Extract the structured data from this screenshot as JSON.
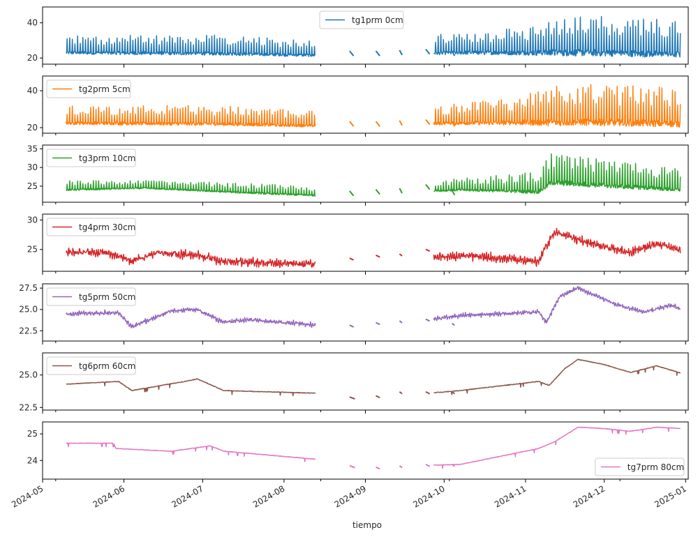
{
  "chart_data": {
    "type": "line",
    "layout": "stacked-subplots-shared-x",
    "xlabel": "tiempo",
    "x_range": [
      "2024-05-01",
      "2025-01-02"
    ],
    "x_tick_labels": [
      "2024-05",
      "2024-06",
      "2024-07",
      "2024-08",
      "2024-09",
      "2024-10",
      "2024-11",
      "2024-12",
      "2025-01"
    ],
    "x_ticks": [
      "2024-05-01",
      "2024-06-01",
      "2024-07-01",
      "2024-08-01",
      "2024-09-01",
      "2024-10-01",
      "2024-11-01",
      "2024-12-01",
      "2025-01-01"
    ],
    "data_start": "2024-05-10",
    "data_end": "2024-12-30",
    "gap": {
      "start": "2024-08-13",
      "end": "2024-09-27",
      "note": "sparse fragments only"
    },
    "series": [
      {
        "name": "tg1prm 0cm",
        "color": "#1f77b4",
        "legend_position": "upper-center",
        "ylim": [
          16.5,
          49
        ],
        "yticks": [
          20,
          40
        ],
        "ytick_labels": [
          "20",
          "40"
        ],
        "style": "spiky",
        "base": [
          [
            0,
            23
          ],
          [
            60,
            22.5
          ],
          [
            95,
            21.5
          ],
          [
            150,
            23
          ],
          [
            200,
            23
          ],
          [
            235,
            22
          ]
        ],
        "peak": [
          [
            0,
            33
          ],
          [
            30,
            33
          ],
          [
            60,
            33
          ],
          [
            95,
            30
          ],
          [
            150,
            34
          ],
          [
            175,
            38
          ],
          [
            185,
            45
          ],
          [
            235,
            42
          ]
        ],
        "fragments": [
          [
            108,
            109.5,
            22
          ],
          [
            118,
            119.5,
            22
          ],
          [
            127,
            128,
            22.5
          ],
          [
            137,
            138.5,
            23
          ],
          [
            147,
            148,
            22
          ]
        ]
      },
      {
        "name": "tg2prm 5cm",
        "color": "#ff7f0e",
        "legend_position": "upper-left",
        "ylim": [
          17,
          48
        ],
        "yticks": [
          20,
          40
        ],
        "ytick_labels": [
          "20",
          "40"
        ],
        "style": "spiky",
        "base": [
          [
            0,
            22.5
          ],
          [
            60,
            22
          ],
          [
            95,
            21
          ],
          [
            150,
            22.5
          ],
          [
            200,
            23
          ],
          [
            235,
            22
          ]
        ],
        "peak": [
          [
            0,
            32
          ],
          [
            30,
            32
          ],
          [
            60,
            32
          ],
          [
            95,
            29
          ],
          [
            150,
            33
          ],
          [
            175,
            38
          ],
          [
            185,
            44
          ],
          [
            235,
            42
          ]
        ],
        "fragments": [
          [
            108,
            109.5,
            21.5
          ],
          [
            118,
            119.5,
            21.5
          ],
          [
            127,
            128,
            22
          ],
          [
            137,
            138.5,
            22.5
          ],
          [
            147,
            148,
            21.5
          ]
        ]
      },
      {
        "name": "tg3prm 10cm",
        "color": "#2ca02c",
        "legend_position": "upper-left",
        "ylim": [
          20.7,
          36
        ],
        "yticks": [
          25,
          30,
          35
        ],
        "ytick_labels": [
          "25",
          "30",
          "35"
        ],
        "style": "spiky",
        "base": [
          [
            0,
            24
          ],
          [
            30,
            24.5
          ],
          [
            60,
            23.5
          ],
          [
            95,
            22.5
          ],
          [
            150,
            24
          ],
          [
            180,
            23.5
          ],
          [
            185,
            26
          ],
          [
            235,
            24
          ]
        ],
        "peak": [
          [
            0,
            26.5
          ],
          [
            30,
            26.5
          ],
          [
            60,
            26
          ],
          [
            95,
            25
          ],
          [
            150,
            27
          ],
          [
            180,
            29
          ],
          [
            185,
            34
          ],
          [
            235,
            29.5
          ]
        ],
        "fragments": [
          [
            108,
            109.5,
            22.8
          ],
          [
            118,
            119.5,
            23.2
          ],
          [
            127,
            128,
            23.5
          ],
          [
            137,
            138.5,
            24.5
          ],
          [
            147,
            148,
            23
          ]
        ]
      },
      {
        "name": "tg4prm 30cm",
        "color": "#d62728",
        "legend_position": "upper-left",
        "ylim": [
          21.3,
          31
        ],
        "yticks": [
          25,
          30
        ],
        "ytick_labels": [
          "25",
          "30"
        ],
        "style": "wavy",
        "base": [
          [
            0,
            24.5
          ],
          [
            15,
            24.5
          ],
          [
            25,
            23
          ],
          [
            35,
            24.5
          ],
          [
            50,
            24
          ],
          [
            60,
            23
          ],
          [
            95,
            22.5
          ],
          [
            150,
            24
          ],
          [
            180,
            23
          ],
          [
            186,
            28
          ],
          [
            200,
            26
          ],
          [
            215,
            24.5
          ],
          [
            225,
            26
          ],
          [
            235,
            24.8
          ]
        ],
        "amp": 1.6,
        "fragments": [
          [
            108,
            109.5,
            23.3
          ],
          [
            118,
            119.5,
            23.8
          ],
          [
            127,
            128,
            24
          ],
          [
            137,
            138.5,
            24.8
          ],
          [
            147,
            148,
            23.5
          ]
        ]
      },
      {
        "name": "tg5prm 50cm",
        "color": "#9467bd",
        "legend_position": "upper-left",
        "ylim": [
          21.3,
          28
        ],
        "yticks": [
          22.5,
          25.0,
          27.5
        ],
        "ytick_labels": [
          "22.5",
          "25.0",
          "27.5"
        ],
        "style": "wavy",
        "base": [
          [
            0,
            24.5
          ],
          [
            20,
            24.6
          ],
          [
            25,
            23
          ],
          [
            40,
            24.8
          ],
          [
            50,
            25
          ],
          [
            60,
            23.5
          ],
          [
            70,
            23.8
          ],
          [
            95,
            23.2
          ],
          [
            105,
            22.5
          ],
          [
            150,
            24.3
          ],
          [
            180,
            24.7
          ],
          [
            183,
            23.5
          ],
          [
            188,
            26.5
          ],
          [
            195,
            27.5
          ],
          [
            210,
            25.5
          ],
          [
            220,
            24.7
          ],
          [
            230,
            25.5
          ],
          [
            235,
            25
          ]
        ],
        "amp": 0.6,
        "fragments": [
          [
            108,
            109.5,
            23
          ],
          [
            118,
            119.5,
            23.3
          ],
          [
            127,
            128,
            23.5
          ],
          [
            137,
            138.5,
            23.7
          ],
          [
            147,
            148,
            23.2
          ]
        ]
      },
      {
        "name": "tg6prm 60cm",
        "color": "#8c564b",
        "legend_position": "upper-left",
        "ylim": [
          22.3,
          26.7
        ],
        "yticks": [
          22.5,
          25.0
        ],
        "ytick_labels": [
          "22.5",
          "25.0"
        ],
        "style": "smooth",
        "base": [
          [
            0,
            24.3
          ],
          [
            20,
            24.5
          ],
          [
            25,
            23.8
          ],
          [
            45,
            24.5
          ],
          [
            50,
            24.7
          ],
          [
            60,
            23.8
          ],
          [
            95,
            23.6
          ],
          [
            104,
            22.8
          ],
          [
            108,
            23.1
          ],
          [
            150,
            23.8
          ],
          [
            180,
            24.5
          ],
          [
            184,
            24.2
          ],
          [
            190,
            25.5
          ],
          [
            195,
            26.2
          ],
          [
            205,
            25.8
          ],
          [
            215,
            25.2
          ],
          [
            225,
            25.7
          ],
          [
            235,
            25.1
          ]
        ],
        "amp": 0.05,
        "fragments": [
          [
            108,
            110,
            23.2
          ],
          [
            118,
            119.5,
            23.3
          ],
          [
            127,
            128,
            23.6
          ],
          [
            137,
            138.5,
            23.6
          ],
          [
            147,
            148,
            23.6
          ]
        ]
      },
      {
        "name": "tg7prm 80cm",
        "color": "#e377c2",
        "legend_position": "lower-right",
        "ylim": [
          23.3,
          25.45
        ],
        "yticks": [
          24,
          25
        ],
        "ytick_labels": [
          "24",
          "25"
        ],
        "style": "smooth",
        "base": [
          [
            0,
            24.65
          ],
          [
            18,
            24.65
          ],
          [
            19,
            24.45
          ],
          [
            40,
            24.35
          ],
          [
            55,
            24.55
          ],
          [
            60,
            24.35
          ],
          [
            95,
            24.05
          ],
          [
            104,
            23.75
          ],
          [
            150,
            23.85
          ],
          [
            180,
            24.45
          ],
          [
            186,
            24.7
          ],
          [
            195,
            25.25
          ],
          [
            205,
            25.2
          ],
          [
            215,
            25.1
          ],
          [
            225,
            25.25
          ],
          [
            235,
            25.2
          ]
        ],
        "amp": 0.02,
        "fragments": [
          [
            108,
            110,
            23.75
          ],
          [
            118,
            119.5,
            23.7
          ],
          [
            127,
            128,
            23.75
          ],
          [
            137,
            138.5,
            23.8
          ],
          [
            147,
            148,
            23.8
          ]
        ]
      }
    ]
  }
}
